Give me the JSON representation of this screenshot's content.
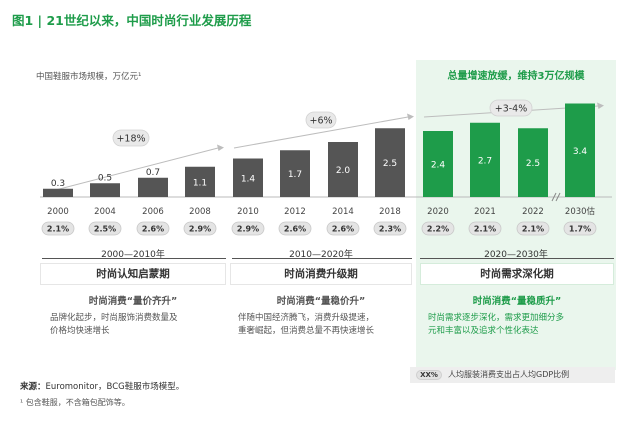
{
  "figure_title": "图1 | 21世纪以来，中国时尚行业发展历程",
  "highlight_caption": "总量增速放缓，维持3万亿规模",
  "colors": {
    "accent_green": "#1e9c4a",
    "bar_gray": "#555555",
    "panel_green": "#eaf6ed",
    "pill_gray": "#e6e6e6"
  },
  "chart_data": {
    "type": "bar",
    "ylabel": "中国鞋服市场规模，万亿元¹",
    "categories": [
      "2000",
      "2004",
      "2006",
      "2008",
      "2010",
      "2012",
      "2014",
      "2018",
      "2020",
      "2021",
      "2022",
      "2030估"
    ],
    "values": [
      0.3,
      0.5,
      0.7,
      1.1,
      1.4,
      1.7,
      2.0,
      2.5,
      2.4,
      2.7,
      2.5,
      3.4
    ],
    "value_labels": [
      "0.3",
      "0.5",
      "0.7",
      "1.1",
      "1.4",
      "1.7",
      "2.0",
      "2.5",
      "2.4",
      "2.7",
      "2.5",
      "3.4"
    ],
    "highlighted_from_index": 8,
    "axis_break_before_last": true,
    "gdp_share_labels": [
      "2.1%",
      "2.5%",
      "2.6%",
      "2.9%",
      "2.9%",
      "2.6%",
      "2.6%",
      "2.3%",
      "2.2%",
      "2.1%",
      "2.1%",
      "1.7%"
    ],
    "growth_annotations": [
      {
        "label": "+18%",
        "from_index": 0,
        "to_index": 3
      },
      {
        "label": "+6%",
        "from_index": 4,
        "to_index": 7
      },
      {
        "label": "+3-4%",
        "from_index": 8,
        "to_index": 11
      }
    ]
  },
  "periods": [
    {
      "range": "2000—2010年",
      "stage": "时尚认知启蒙期",
      "subtitle": "时尚消费“量价齐升”",
      "desc": [
        "品牌化起步，时尚服饰消费数量及",
        "价格均快速增长"
      ]
    },
    {
      "range": "2010—2020年",
      "stage": "时尚消费升级期",
      "subtitle": "时尚消费“量稳价升”",
      "desc": [
        "伴随中国经济腾飞，消费升级提速，",
        "重奢崛起，但消费总量不再快速增长"
      ]
    },
    {
      "range": "2020—2030年",
      "stage": "时尚需求深化期",
      "subtitle": "时尚消费“量稳质升”",
      "desc": [
        "时尚需求逐步深化，需求更加细分多",
        "元和丰富以及追求个性化表达"
      ]
    }
  ],
  "legend": {
    "pill": "XX%",
    "text": "人均服装消费支出占人均GDP比例"
  },
  "source": {
    "label": "来源：",
    "text": "Euromonitor，BCG鞋服市场模型。"
  },
  "footnote": "¹ 包含鞋服，不含箱包配饰等。"
}
